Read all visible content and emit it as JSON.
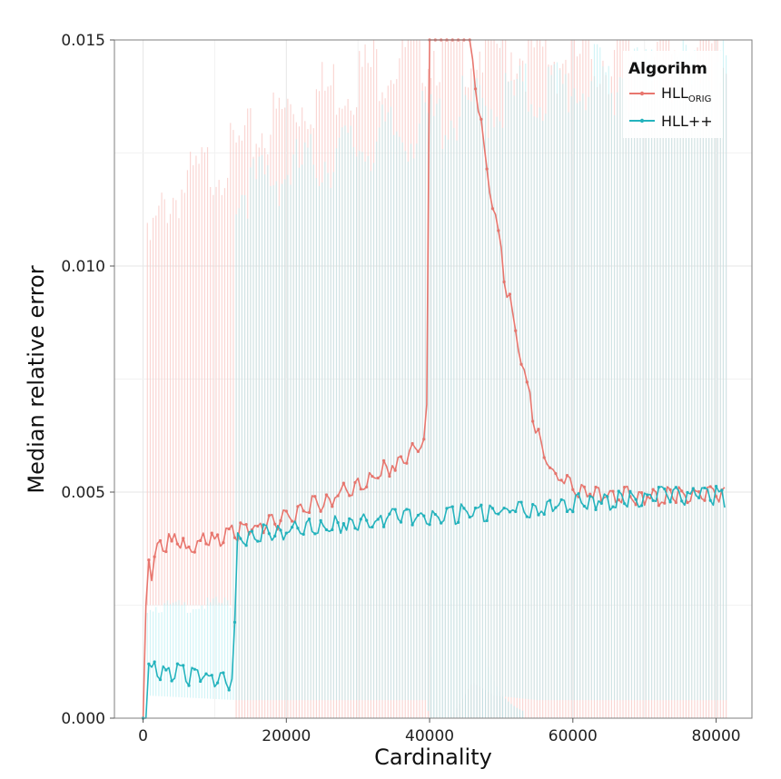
{
  "chart_data": {
    "type": "line",
    "title": "",
    "xlabel": "Cardinality",
    "ylabel": "Median relative error",
    "xlim": [
      -4000,
      85000
    ],
    "ylim": [
      0,
      0.015
    ],
    "xticks": [
      0,
      20000,
      40000,
      60000,
      80000
    ],
    "xtick_labels": [
      "0",
      "20000",
      "40000",
      "60000",
      "80000"
    ],
    "yticks": [
      0,
      0.005,
      0.01,
      0.015
    ],
    "ytick_labels": [
      "0.000",
      "0.005",
      "0.010",
      "0.015"
    ],
    "grid": true,
    "legend": {
      "title": "Algorihm",
      "position": "top-right",
      "entries": [
        {
          "label_main": "HLL",
          "label_sub": "ORIG",
          "color": "#e8766e"
        },
        {
          "label_main": "HLL++",
          "label_sub": "",
          "color": "#24b3bd"
        }
      ]
    },
    "series": [
      {
        "name": "HLL_ORIG",
        "color": "#e8766e",
        "band_color": "#f9c9c5",
        "points": [
          [
            0,
            0.0
          ],
          [
            400,
            0.0025
          ],
          [
            800,
            0.0035
          ],
          [
            1200,
            0.0033
          ],
          [
            2000,
            0.0038
          ],
          [
            3000,
            0.004
          ],
          [
            4000,
            0.0039
          ],
          [
            5000,
            0.004
          ],
          [
            6000,
            0.0038
          ],
          [
            7000,
            0.0039
          ],
          [
            8000,
            0.004
          ],
          [
            9000,
            0.0041
          ],
          [
            10000,
            0.004
          ],
          [
            11000,
            0.0041
          ],
          [
            12000,
            0.0041
          ],
          [
            13000,
            0.0042
          ],
          [
            14000,
            0.0042
          ],
          [
            16000,
            0.0043
          ],
          [
            18000,
            0.0044
          ],
          [
            20000,
            0.0045
          ],
          [
            22000,
            0.0047
          ],
          [
            24000,
            0.0048
          ],
          [
            26000,
            0.0049
          ],
          [
            28000,
            0.0051
          ],
          [
            30000,
            0.0052
          ],
          [
            32000,
            0.0054
          ],
          [
            34000,
            0.0056
          ],
          [
            36000,
            0.0058
          ],
          [
            38000,
            0.006
          ],
          [
            39500,
            0.0063
          ],
          [
            39800,
            0.0082
          ],
          [
            40000,
            0.016
          ],
          [
            45000,
            0.016
          ],
          [
            46000,
            0.0146
          ],
          [
            47000,
            0.0134
          ],
          [
            48000,
            0.0122
          ],
          [
            49000,
            0.0112
          ],
          [
            50000,
            0.0103
          ],
          [
            51000,
            0.0094
          ],
          [
            52000,
            0.0086
          ],
          [
            53000,
            0.0078
          ],
          [
            54000,
            0.0071
          ],
          [
            55000,
            0.0064
          ],
          [
            56000,
            0.0059
          ],
          [
            57000,
            0.0056
          ],
          [
            58000,
            0.0054
          ],
          [
            60000,
            0.0052
          ],
          [
            62000,
            0.0051
          ],
          [
            64000,
            0.005
          ],
          [
            68000,
            0.005
          ],
          [
            72000,
            0.005
          ],
          [
            76000,
            0.005
          ],
          [
            80000,
            0.005
          ],
          [
            81500,
            0.005
          ]
        ],
        "upper": [
          [
            200,
            0.0
          ],
          [
            600,
            0.0105
          ],
          [
            3000,
            0.0115
          ],
          [
            8000,
            0.0122
          ],
          [
            12500,
            0.0126
          ],
          [
            20000,
            0.0136
          ],
          [
            30000,
            0.0144
          ],
          [
            38000,
            0.015
          ],
          [
            40000,
            0.015
          ],
          [
            50000,
            0.015
          ],
          [
            58000,
            0.0148
          ],
          [
            62000,
            0.0148
          ],
          [
            70000,
            0.0148
          ],
          [
            81500,
            0.015
          ]
        ],
        "lower": [
          [
            200,
            0.0
          ],
          [
            600,
            0.0025
          ],
          [
            3000,
            0.0025
          ],
          [
            8000,
            0.0025
          ],
          [
            12500,
            0.0025
          ],
          [
            13000,
            0.0
          ],
          [
            81500,
            0.0
          ]
        ]
      },
      {
        "name": "HLL++",
        "color": "#24b3bd",
        "band_color": "#b5eef2",
        "points": [
          [
            0,
            0.0
          ],
          [
            400,
            0.0
          ],
          [
            600,
            0.0012
          ],
          [
            1500,
            0.0012
          ],
          [
            2500,
            0.0011
          ],
          [
            3500,
            0.0011
          ],
          [
            5000,
            0.0011
          ],
          [
            6000,
            0.001
          ],
          [
            7500,
            0.001
          ],
          [
            9000,
            0.001
          ],
          [
            10500,
            0.0009
          ],
          [
            12000,
            0.0009
          ],
          [
            12700,
            0.001
          ],
          [
            13000,
            0.004
          ],
          [
            14000,
            0.0041
          ],
          [
            16000,
            0.0041
          ],
          [
            18000,
            0.0042
          ],
          [
            20000,
            0.0042
          ],
          [
            22000,
            0.0043
          ],
          [
            24000,
            0.0043
          ],
          [
            26000,
            0.0043
          ],
          [
            28000,
            0.0044
          ],
          [
            30000,
            0.0044
          ],
          [
            32000,
            0.0044
          ],
          [
            34000,
            0.0045
          ],
          [
            36000,
            0.0045
          ],
          [
            38000,
            0.0045
          ],
          [
            40000,
            0.0045
          ],
          [
            42000,
            0.0045
          ],
          [
            44000,
            0.0046
          ],
          [
            46000,
            0.0046
          ],
          [
            48000,
            0.0046
          ],
          [
            50000,
            0.0047
          ],
          [
            52000,
            0.0047
          ],
          [
            54000,
            0.0047
          ],
          [
            56000,
            0.0047
          ],
          [
            58000,
            0.0048
          ],
          [
            60000,
            0.0048
          ],
          [
            62000,
            0.0049
          ],
          [
            64000,
            0.0049
          ],
          [
            66000,
            0.0049
          ],
          [
            68000,
            0.0049
          ],
          [
            70000,
            0.0049
          ],
          [
            72000,
            0.005
          ],
          [
            74000,
            0.005
          ],
          [
            76000,
            0.005
          ],
          [
            78000,
            0.005
          ],
          [
            80000,
            0.005
          ],
          [
            81500,
            0.0049
          ]
        ],
        "upper": [
          [
            400,
            0.0
          ],
          [
            600,
            0.0025
          ],
          [
            6000,
            0.0025
          ],
          [
            12500,
            0.0026
          ],
          [
            13000,
            0.0118
          ],
          [
            20000,
            0.0122
          ],
          [
            30000,
            0.0128
          ],
          [
            38000,
            0.0132
          ],
          [
            45000,
            0.0136
          ],
          [
            55000,
            0.014
          ],
          [
            62000,
            0.0142
          ],
          [
            70000,
            0.0145
          ],
          [
            81500,
            0.0147
          ]
        ],
        "lower": [
          [
            400,
            0.0
          ],
          [
            600,
            0.0005
          ],
          [
            13000,
            0.0004
          ],
          [
            30000,
            0.0004
          ],
          [
            39500,
            0.0004
          ],
          [
            40000,
            0.0
          ],
          [
            43000,
            0.0
          ],
          [
            46000,
            0.0008
          ],
          [
            49000,
            0.0005
          ],
          [
            55000,
            0.0004
          ],
          [
            81500,
            0.0004
          ]
        ],
        "spike": {
          "x_range": [
            40000,
            53000
          ],
          "peak_x": 42000,
          "peak_y": 0.0135
        }
      }
    ]
  }
}
